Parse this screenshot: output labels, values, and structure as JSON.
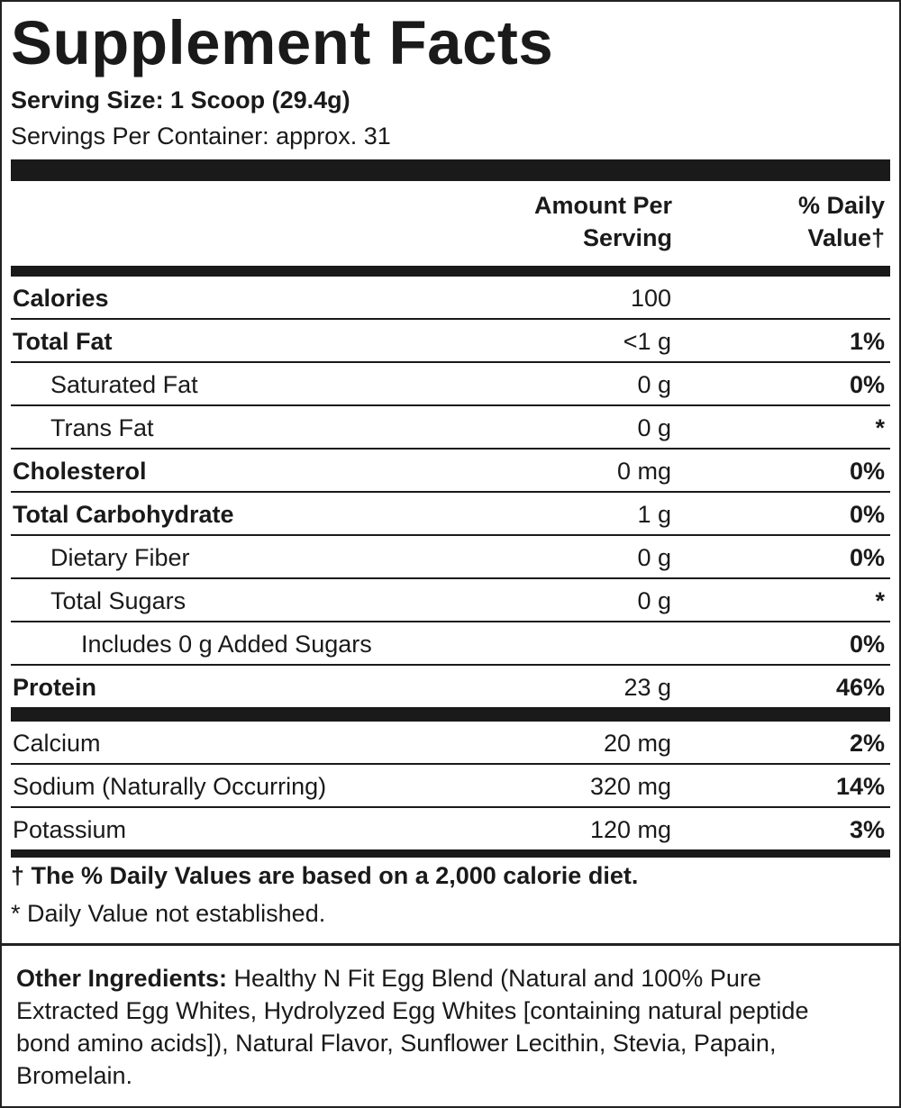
{
  "title": "Supplement Facts",
  "serving_size": "Serving Size: 1 Scoop (29.4g)",
  "servings_per_container": "Servings Per Container: approx. 31",
  "header": {
    "amount_line1": "Amount Per",
    "amount_line2": "Serving",
    "dv_line1": "% Daily",
    "dv_line2": "Value†"
  },
  "rows": [
    {
      "name": "Calories",
      "amount": "100",
      "dv": "",
      "bold": true,
      "indent": 0
    },
    {
      "name": "Total Fat",
      "amount": "<1 g",
      "dv": "1%",
      "bold": true,
      "indent": 0
    },
    {
      "name": "Saturated Fat",
      "amount": "0 g",
      "dv": "0%",
      "bold": false,
      "indent": 1
    },
    {
      "name": "Trans Fat",
      "amount": "0 g",
      "dv": "*",
      "bold": false,
      "indent": 1
    },
    {
      "name": "Cholesterol",
      "amount": "0 mg",
      "dv": "0%",
      "bold": true,
      "indent": 0
    },
    {
      "name": "Total Carbohydrate",
      "amount": "1 g",
      "dv": "0%",
      "bold": true,
      "indent": 0
    },
    {
      "name": "Dietary Fiber",
      "amount": "0 g",
      "dv": "0%",
      "bold": false,
      "indent": 1
    },
    {
      "name": "Total Sugars",
      "amount": "0 g",
      "dv": "*",
      "bold": false,
      "indent": 1
    },
    {
      "name": "Includes 0 g Added Sugars",
      "amount": "",
      "dv": "0%",
      "bold": false,
      "indent": 2
    },
    {
      "name": "Protein",
      "amount": "23 g",
      "dv": "46%",
      "bold": true,
      "indent": 0
    }
  ],
  "minerals": [
    {
      "name": "Calcium",
      "amount": "20 mg",
      "dv": "2%"
    },
    {
      "name": "Sodium (Naturally Occurring)",
      "amount": "320 mg",
      "dv": "14%"
    },
    {
      "name": "Potassium",
      "amount": "120 mg",
      "dv": "3%"
    }
  ],
  "footnote_dv": "† The % Daily Values are based on a 2,000 calorie diet.",
  "footnote_star": "* Daily Value not established.",
  "ingredients": {
    "label": "Other Ingredients:",
    "text": " Healthy N Fit Egg Blend (Natural and 100% Pure Extracted Egg Whites, Hydrolyzed Egg Whites [containing natural peptide bond amino acids]), Natural Flavor, Sunflower Lecithin, Stevia, Papain, Bromelain."
  }
}
